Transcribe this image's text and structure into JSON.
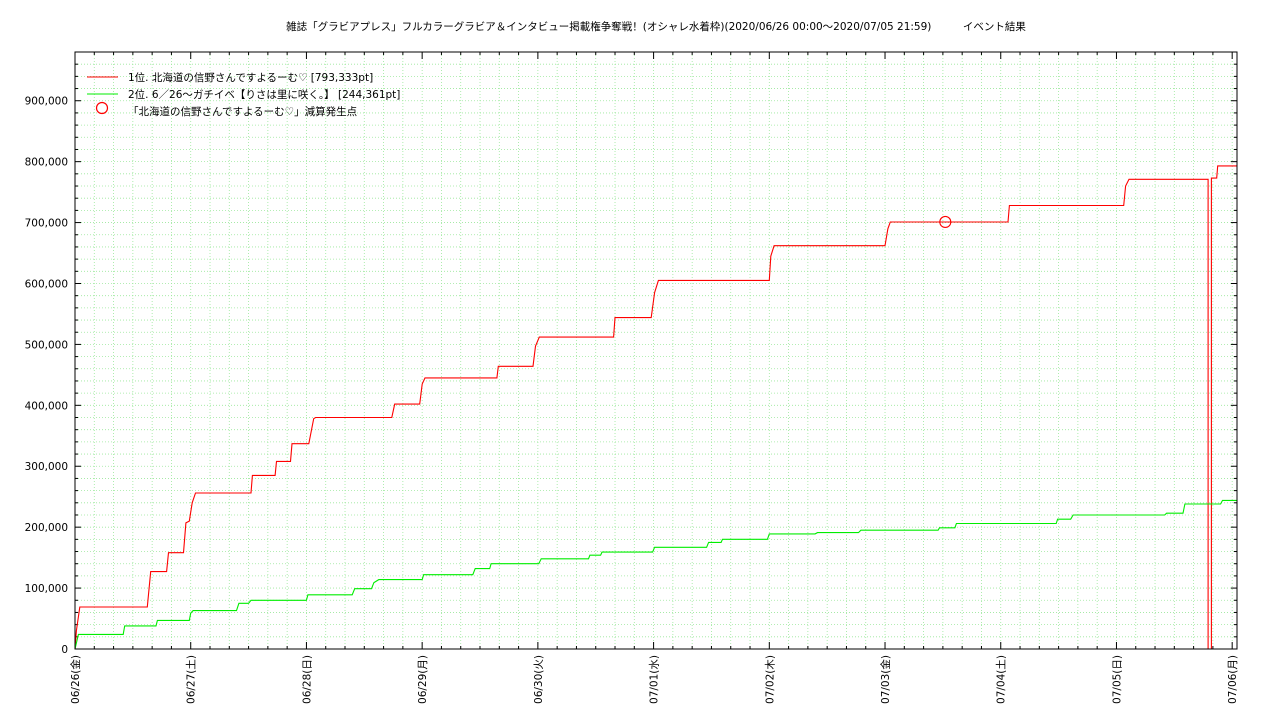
{
  "chart_data": {
    "type": "line",
    "title": "雑誌「グラビアプレス」フルカラーグラビア＆インタビュー掲載権争奪戦！(オシャレ水着枠)(2020/06/26 00:00〜2020/07/05 21:59)　　　イベント結果",
    "ylim": [
      0,
      980000
    ],
    "yticks": [
      0,
      100000,
      200000,
      300000,
      400000,
      500000,
      600000,
      700000,
      800000,
      900000
    ],
    "ytick_labels": [
      "0",
      "100,000",
      "200,000",
      "300,000",
      "400,000",
      "500,000",
      "600,000",
      "700,000",
      "800,000",
      "900,000"
    ],
    "xlim": [
      0,
      241
    ],
    "xticks": [
      0,
      24,
      48,
      72,
      96,
      120,
      144,
      168,
      192,
      216,
      240
    ],
    "xtick_labels": [
      "06/26(金)",
      "06/27(土)",
      "06/28(日)",
      "06/29(月)",
      "06/30(火)",
      "07/01(水)",
      "07/02(木)",
      "07/03(金)",
      "07/04(土)",
      "07/05(日)",
      "07/06(月)"
    ],
    "grid": true,
    "legend_position": "top-left",
    "series": [
      {
        "name": "1位. 北海道の信野さんですよるーむ♡ [793,333pt]",
        "color": "#ff0000",
        "points": [
          [
            0,
            0
          ],
          [
            0.3,
            30000
          ],
          [
            1,
            69000
          ],
          [
            15,
            69000
          ],
          [
            15.7,
            127000
          ],
          [
            19,
            127000
          ],
          [
            19.4,
            158000
          ],
          [
            22.5,
            158000
          ],
          [
            23,
            207000
          ],
          [
            23.7,
            210000
          ],
          [
            24.3,
            240000
          ],
          [
            25,
            256000
          ],
          [
            36.5,
            256000
          ],
          [
            36.8,
            285000
          ],
          [
            41.5,
            285000
          ],
          [
            41.8,
            308000
          ],
          [
            44.7,
            308000
          ],
          [
            45,
            337000
          ],
          [
            48.5,
            337000
          ],
          [
            49.5,
            378000
          ],
          [
            49.9,
            380000
          ],
          [
            65.7,
            380000
          ],
          [
            66.3,
            402000
          ],
          [
            71.5,
            402000
          ],
          [
            72,
            435000
          ],
          [
            72.6,
            445000
          ],
          [
            87.5,
            445000
          ],
          [
            87.8,
            464000
          ],
          [
            95,
            464000
          ],
          [
            95.5,
            497000
          ],
          [
            96.3,
            512000
          ],
          [
            111.7,
            512000
          ],
          [
            112,
            544000
          ],
          [
            119.5,
            544000
          ],
          [
            120.2,
            585000
          ],
          [
            121,
            605000
          ],
          [
            144,
            605000
          ],
          [
            144.3,
            645000
          ],
          [
            145,
            662000
          ],
          [
            168,
            662000
          ],
          [
            168.6,
            690000
          ],
          [
            169.1,
            701000
          ],
          [
            193.5,
            701000
          ],
          [
            193.8,
            728000
          ],
          [
            217.5,
            728000
          ],
          [
            217.9,
            760000
          ],
          [
            218.6,
            771000
          ],
          [
            235,
            771000
          ],
          [
            235,
            0
          ],
          [
            235.7,
            0
          ],
          [
            235.7,
            773000
          ],
          [
            236.8,
            773000
          ],
          [
            237,
            793000
          ],
          [
            240.9,
            793000
          ]
        ]
      },
      {
        "name": "2位. 6／26〜ガチイベ【りさは里に咲く。】 [244,361pt]",
        "color": "#00ee00",
        "points": [
          [
            0,
            0
          ],
          [
            0.7,
            24000
          ],
          [
            10,
            24000
          ],
          [
            10.3,
            38000
          ],
          [
            16.8,
            38000
          ],
          [
            17.1,
            47000
          ],
          [
            23.7,
            47000
          ],
          [
            24,
            59000
          ],
          [
            24.5,
            63000
          ],
          [
            33.5,
            63000
          ],
          [
            34,
            75000
          ],
          [
            36,
            75000
          ],
          [
            36.5,
            80000
          ],
          [
            48,
            80000
          ],
          [
            48.3,
            89000
          ],
          [
            57.5,
            89000
          ],
          [
            58,
            99000
          ],
          [
            61.5,
            99000
          ],
          [
            62,
            109000
          ],
          [
            63,
            114000
          ],
          [
            72,
            114000
          ],
          [
            72.3,
            122000
          ],
          [
            82.5,
            122000
          ],
          [
            83,
            132000
          ],
          [
            86,
            132000
          ],
          [
            86.3,
            140000
          ],
          [
            96.2,
            140000
          ],
          [
            96.7,
            148000
          ],
          [
            106.5,
            148000
          ],
          [
            106.8,
            154000
          ],
          [
            109,
            154000
          ],
          [
            109.3,
            159000
          ],
          [
            119.8,
            159000
          ],
          [
            120.2,
            167000
          ],
          [
            131,
            167000
          ],
          [
            131.4,
            175000
          ],
          [
            134,
            175000
          ],
          [
            134.3,
            180000
          ],
          [
            143.6,
            180000
          ],
          [
            144,
            189000
          ],
          [
            153.5,
            189000
          ],
          [
            154,
            191000
          ],
          [
            162.5,
            191000
          ],
          [
            163,
            195000
          ],
          [
            179,
            195000
          ],
          [
            179.3,
            199000
          ],
          [
            182.5,
            199000
          ],
          [
            182.8,
            206000
          ],
          [
            203.5,
            206000
          ],
          [
            203.8,
            213000
          ],
          [
            206.5,
            213000
          ],
          [
            207,
            220000
          ],
          [
            226,
            220000
          ],
          [
            226.4,
            223000
          ],
          [
            229.8,
            223000
          ],
          [
            230.2,
            238000
          ],
          [
            237.6,
            238000
          ],
          [
            238,
            244000
          ],
          [
            240.9,
            244000
          ]
        ]
      }
    ],
    "annotation": {
      "label": "「北海道の信野さんですよるーむ♡」減算発生点",
      "x": 180.5,
      "y": 701000,
      "color": "#ff0000"
    }
  }
}
